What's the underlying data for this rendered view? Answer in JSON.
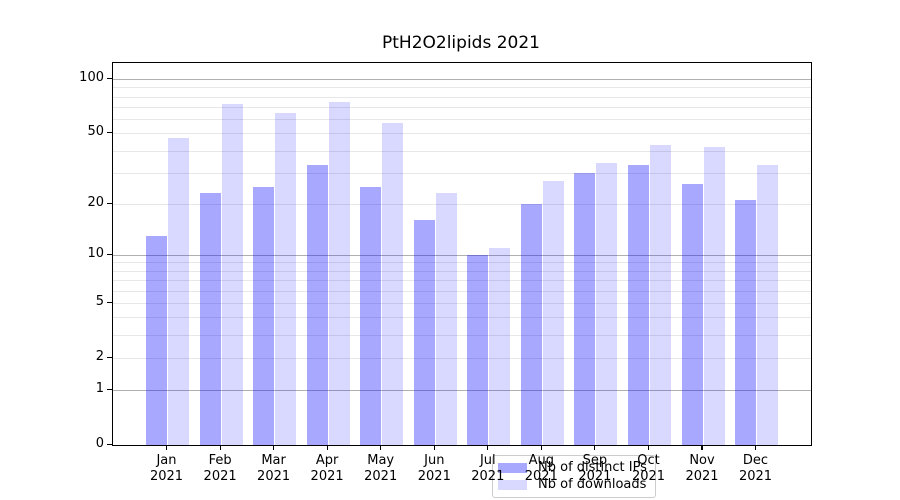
{
  "chart_data": {
    "type": "bar",
    "title": "PtH2O2lipids 2021",
    "categories": [
      "Jan",
      "Feb",
      "Mar",
      "Apr",
      "May",
      "Jun",
      "Jul",
      "Aug",
      "Sep",
      "Oct",
      "Nov",
      "Dec"
    ],
    "x_tick_year": "2021",
    "series": [
      {
        "name": "Nb of distinct IPs",
        "color": "rgba(0,0,255,0.34)",
        "values": [
          13,
          23,
          25,
          33,
          25,
          16,
          10,
          20,
          30,
          33,
          26,
          21
        ]
      },
      {
        "name": "Nb of downloads",
        "color": "rgba(0,0,255,0.15)",
        "values": [
          47,
          73,
          65,
          75,
          57,
          23,
          11,
          27,
          34,
          43,
          42,
          33
        ]
      }
    ],
    "yscale": "log1p",
    "ylim": [
      0,
      122
    ],
    "y_tick_values": [
      100,
      50,
      20,
      10,
      5,
      2,
      1,
      0
    ],
    "y_tick_labels": [
      "100",
      "50",
      "20",
      "10",
      "5",
      "2",
      "1",
      "0"
    ],
    "gridlines_major": [
      1,
      10,
      100
    ],
    "gridlines_minor": [
      2,
      3,
      4,
      5,
      6,
      7,
      8,
      9,
      20,
      30,
      40,
      50,
      60,
      70,
      80,
      90
    ],
    "grid": true,
    "legend_position": "lower center",
    "colors": {
      "bar_distinct_ips": "rgba(0,0,255,0.34)",
      "bar_downloads": "rgba(0,0,255,0.15)",
      "major_grid": "#b0b0b0",
      "minor_grid": "#e7e7e7",
      "spine": "#000000",
      "background": "#ffffff",
      "legend_border": "#cccccc"
    }
  }
}
